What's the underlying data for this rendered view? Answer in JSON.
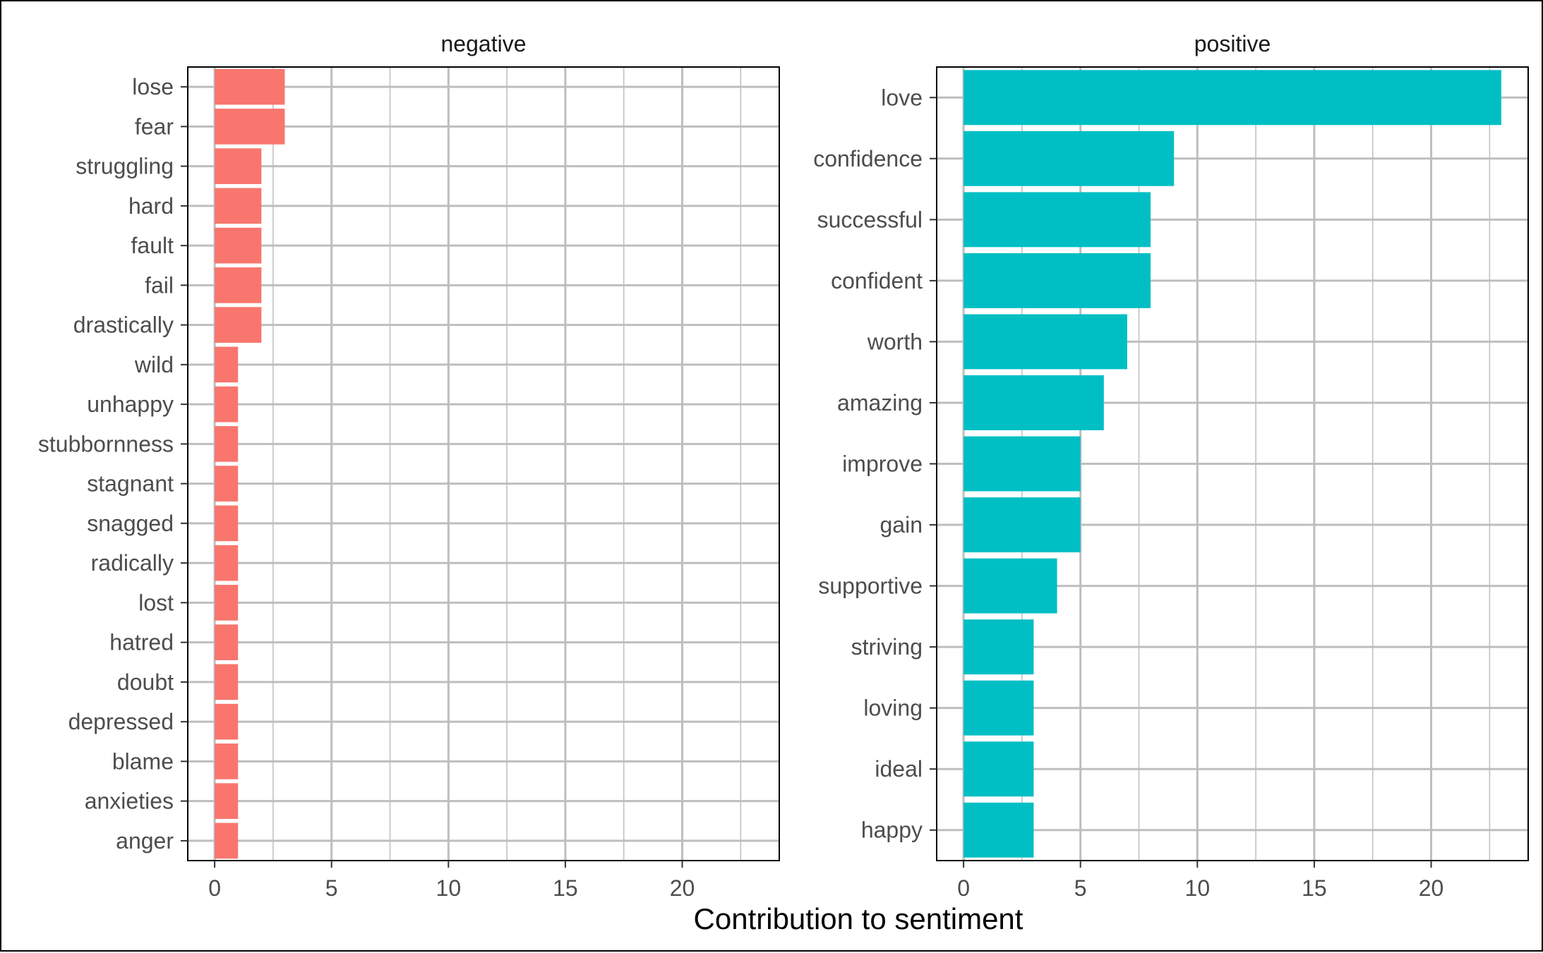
{
  "chart_data": {
    "type": "bar",
    "orientation": "horizontal",
    "xlabel": "Contribution to sentiment",
    "xlim": [
      -1.15,
      24.15
    ],
    "xticks": [
      0,
      5,
      10,
      15,
      20
    ],
    "grid": true,
    "panels": [
      {
        "name": "negative",
        "color": "#F8766D",
        "categories": [
          "lose",
          "fear",
          "struggling",
          "hard",
          "fault",
          "fail",
          "drastically",
          "wild",
          "unhappy",
          "stubbornness",
          "stagnant",
          "snagged",
          "radically",
          "lost",
          "hatred",
          "doubt",
          "depressed",
          "blame",
          "anxieties",
          "anger"
        ],
        "values": [
          3,
          3,
          2,
          2,
          2,
          2,
          2,
          1,
          1,
          1,
          1,
          1,
          1,
          1,
          1,
          1,
          1,
          1,
          1,
          1
        ]
      },
      {
        "name": "positive",
        "color": "#00BFC4",
        "categories": [
          "love",
          "confidence",
          "successful",
          "confident",
          "worth",
          "amazing",
          "improve",
          "gain",
          "supportive",
          "striving",
          "loving",
          "ideal",
          "happy"
        ],
        "values": [
          23,
          9,
          8,
          8,
          7,
          6,
          5,
          5,
          4,
          3,
          3,
          3,
          3
        ]
      }
    ]
  }
}
